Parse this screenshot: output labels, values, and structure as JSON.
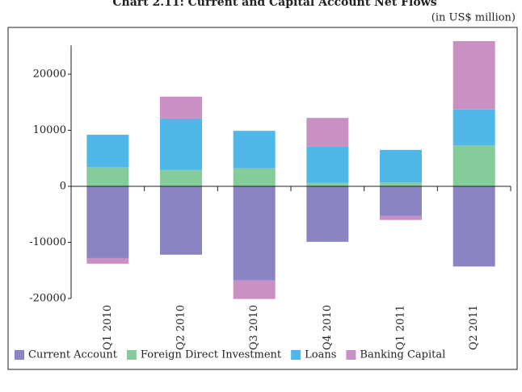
{
  "chart_data": {
    "type": "bar",
    "stacked": true,
    "title": "Chart 2.11: Current and Capital Account Net Flows",
    "subtitle": "(in US$ million)",
    "categories": [
      "Q1 2010",
      "Q2 2010",
      "Q3 2010",
      "Q4 2010",
      "Q1 2011",
      "Q2 2011"
    ],
    "series": [
      {
        "name": "Current Account",
        "color": "#8b84c3",
        "values": [
          -12800,
          -12200,
          -16800,
          -9900,
          -5300,
          -14300
        ]
      },
      {
        "name": "Foreign Direct Investment",
        "color": "#84cc99",
        "values": [
          3450,
          2900,
          3200,
          600,
          700,
          7300
        ]
      },
      {
        "name": "Loans",
        "color": "#4fb8e8",
        "values": [
          5750,
          9200,
          6700,
          6500,
          5800,
          6400
        ]
      },
      {
        "name": "Banking Capital",
        "color": "#c990c4",
        "values": [
          -1000,
          3900,
          -3300,
          5100,
          -700,
          12200
        ]
      }
    ],
    "ylim": [
      -20000,
      26000
    ],
    "yticks": [
      -20000,
      -10000,
      0,
      10000,
      20000
    ],
    "legend": "bottom"
  }
}
